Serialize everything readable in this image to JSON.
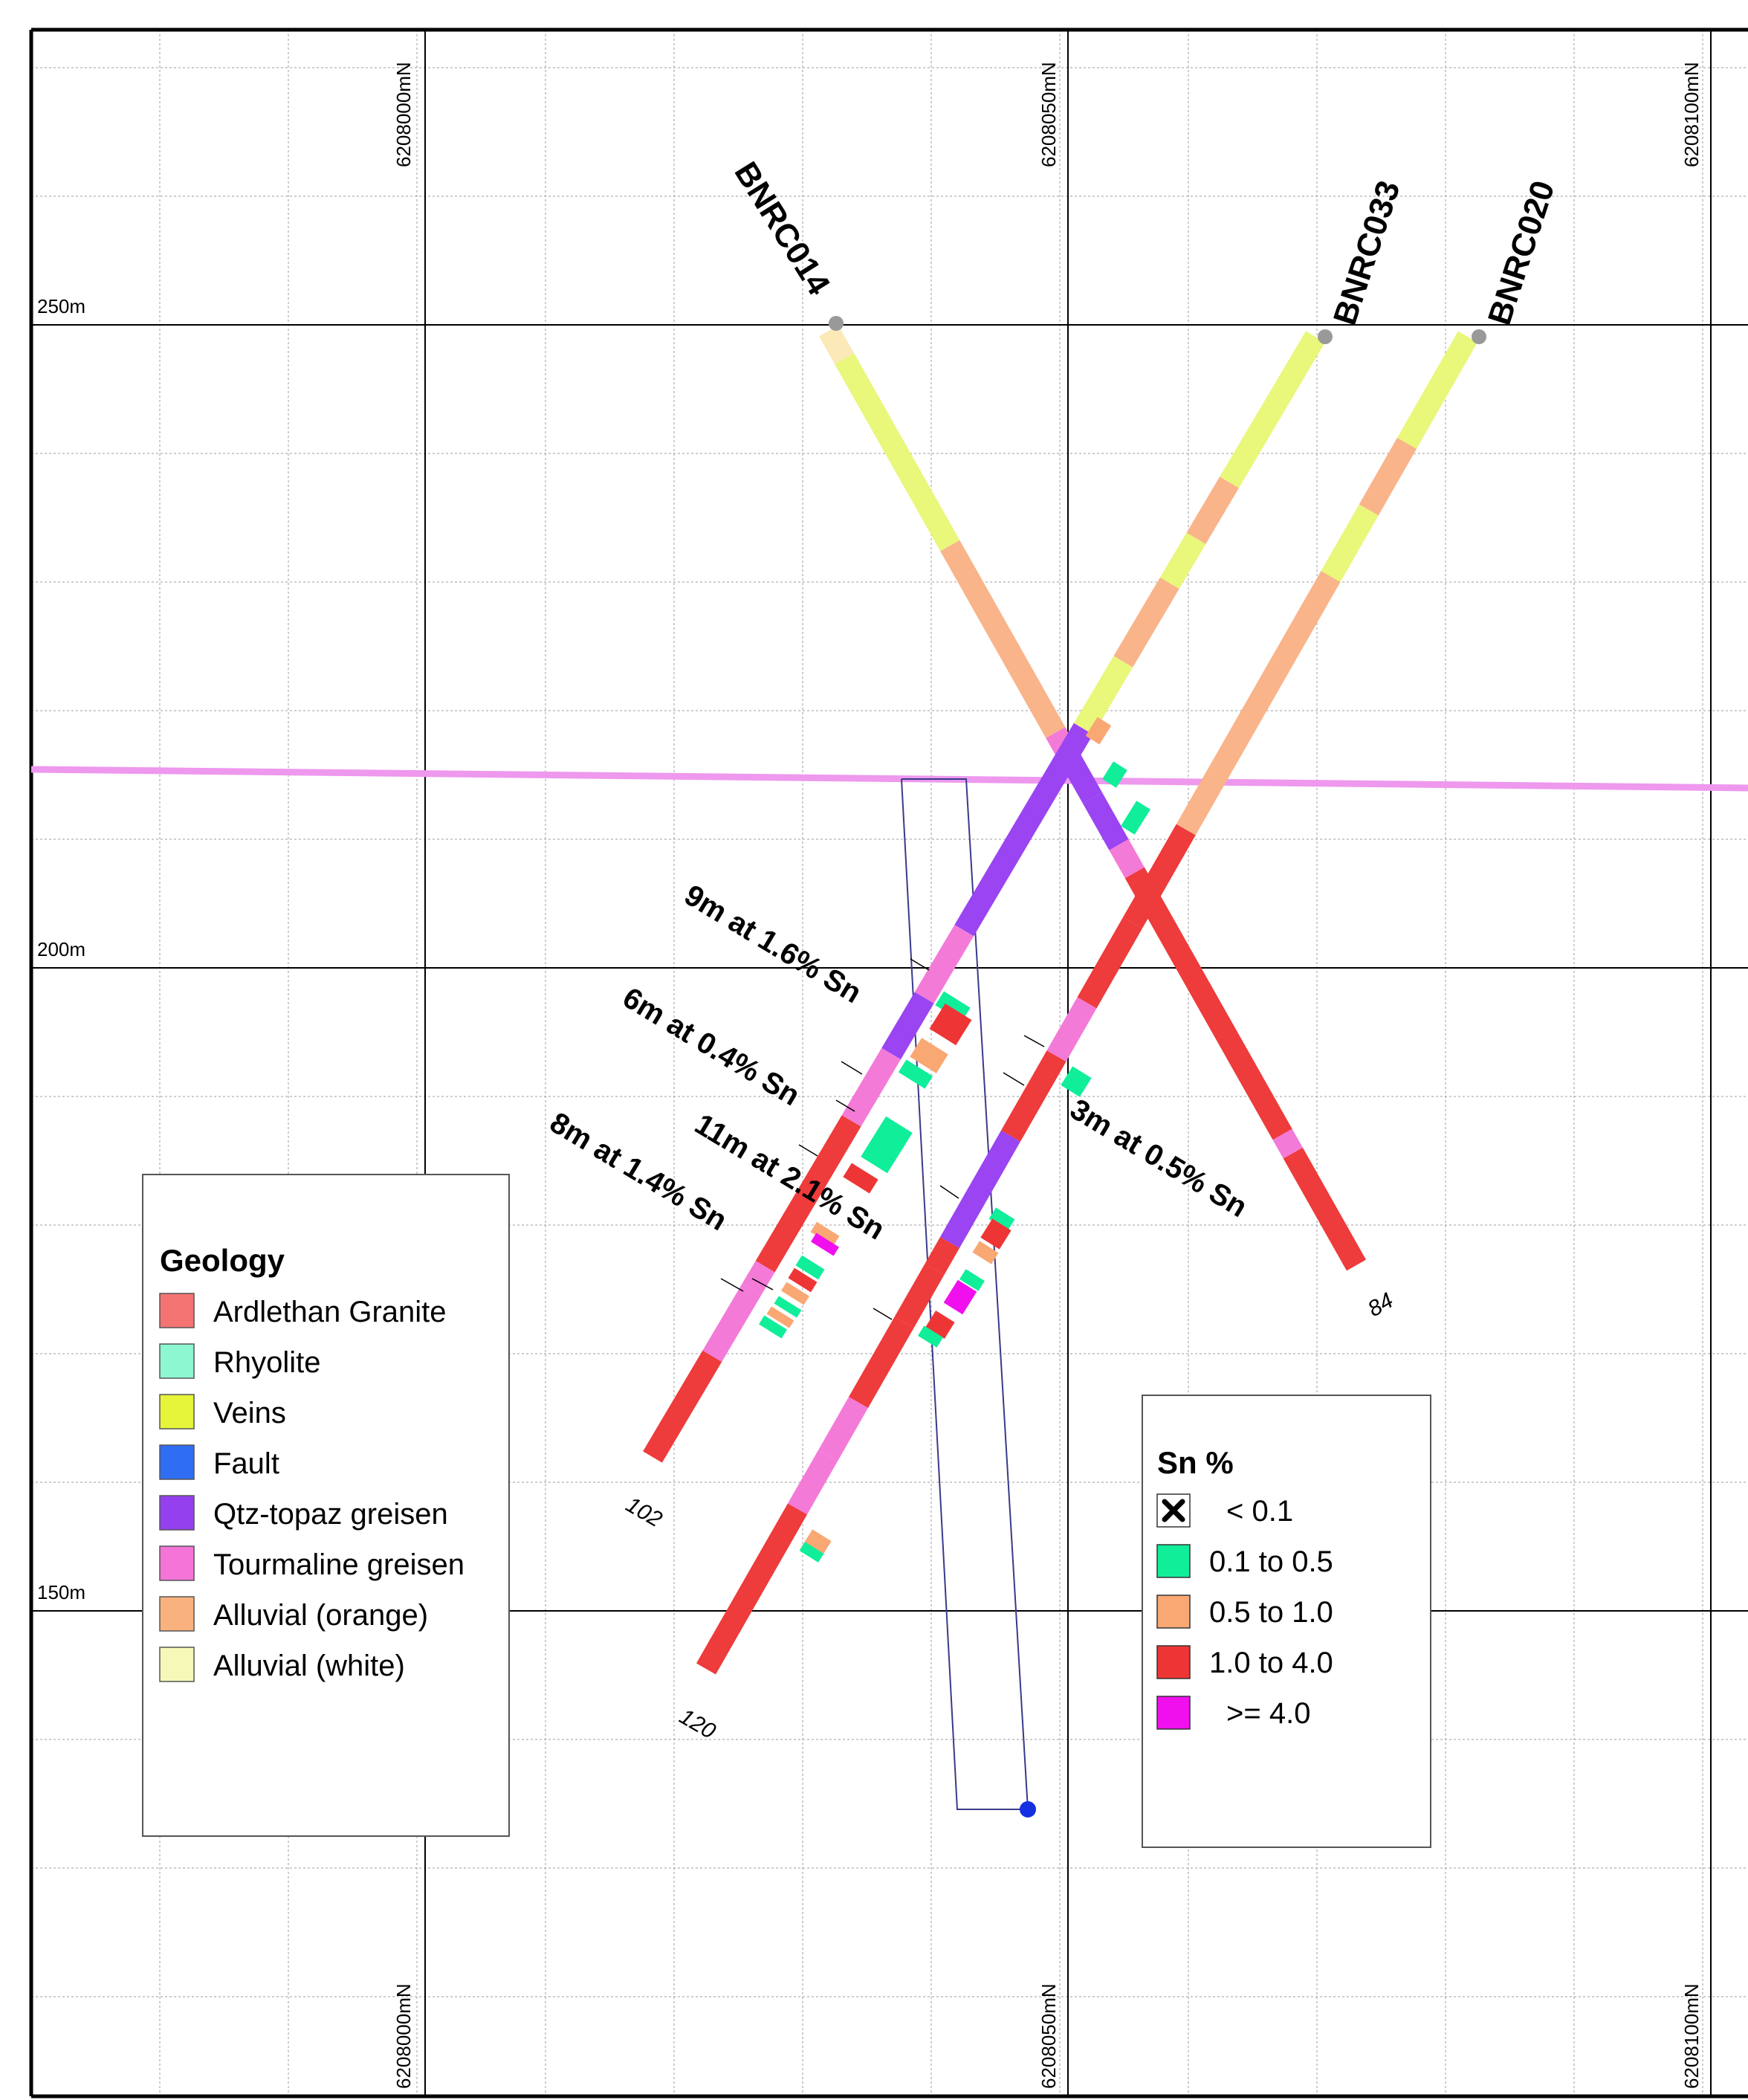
{
  "grid": {
    "northing_labels": [
      "6208000mN",
      "6208050mN",
      "6208100mN"
    ],
    "rl_labels": [
      "250m",
      "200m",
      "150m"
    ]
  },
  "holes": [
    {
      "id": "BNRC014",
      "end_depth": "84"
    },
    {
      "id": "BNRC033",
      "end_depth": "102"
    },
    {
      "id": "BNRC020",
      "end_depth": "120"
    }
  ],
  "intercepts": [
    "9m at 1.6% Sn",
    "6m at 0.4% Sn",
    "11m at 2.1% Sn",
    "8m at 1.4% Sn",
    "3m at 0.5% Sn"
  ],
  "legend_geology": {
    "title": "Geology",
    "items": [
      {
        "label": "Ardlethan Granite",
        "color": "#f47474"
      },
      {
        "label": "Rhyolite",
        "color": "#8cf7d0"
      },
      {
        "label": "Veins",
        "color": "#e6f53a"
      },
      {
        "label": "Fault",
        "color": "#2f6df2"
      },
      {
        "label": "Qtz-topaz greisen",
        "color": "#9440ee"
      },
      {
        "label": "Tourmaline greisen",
        "color": "#f474d8"
      },
      {
        "label": "Alluvial (orange)",
        "color": "#f9b27d"
      },
      {
        "label": "Alluvial (white)",
        "color": "#f6f8b8"
      }
    ]
  },
  "legend_sn": {
    "title": "Sn %",
    "items": [
      {
        "label": "< 0.1",
        "color": "#ffffff",
        "icon": "cross-icon"
      },
      {
        "label": "0.1 to 0.5",
        "color": "#10ee9a"
      },
      {
        "label": "0.5 to 1.0",
        "color": "#f9a874"
      },
      {
        "label": "1.0 to 4.0",
        "color": "#ee3535"
      },
      {
        "label": ">= 4.0",
        "color": "#f010ee"
      }
    ]
  },
  "colors": {
    "granite": "#ee3b3b",
    "rhyolite": "#10ee9a",
    "veins": "#e9f77a",
    "qtz_topaz": "#9a44f2",
    "tourmaline": "#f47ad8",
    "alluvial_orange": "#f9b48a",
    "alluvial_white": "#fbe9b8",
    "fault_trace": "#ee98ee",
    "pit_outline": "#3a3a8a"
  }
}
